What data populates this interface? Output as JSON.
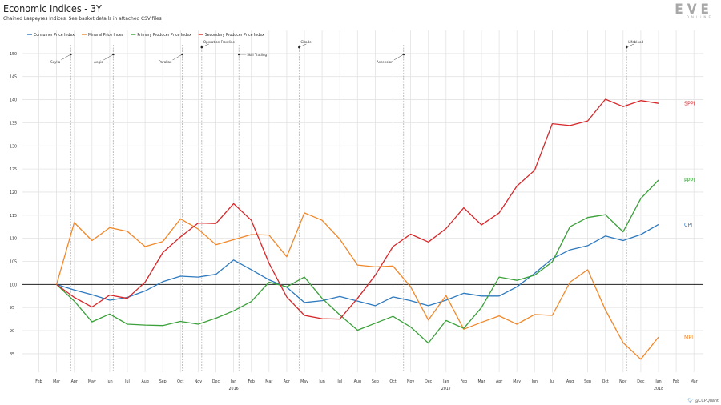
{
  "title": "Economic Indices - 3Y",
  "subtitle": "Chained Laspeyres Indices. See basket details in attached CSV files",
  "logo": {
    "main": "EVE",
    "sub": "ONLINE"
  },
  "credit": "@CCPQuant",
  "chart_data": {
    "type": "line",
    "x_labels": [
      "Feb",
      "Mar",
      "Apr",
      "May",
      "Jun",
      "Jul",
      "Aug",
      "Sep",
      "Oct",
      "Nov",
      "Dec",
      "Jan",
      "Feb",
      "Mar",
      "Apr",
      "May",
      "Jun",
      "Jul",
      "Aug",
      "Sep",
      "Oct",
      "Nov",
      "Dec",
      "Jan",
      "Feb",
      "Mar",
      "Apr",
      "May",
      "Jun",
      "Jul",
      "Aug",
      "Sep",
      "Oct",
      "Nov",
      "Dec",
      "Jan",
      "Feb",
      "Mar"
    ],
    "year_labels": [
      {
        "index": 11,
        "label": "2016"
      },
      {
        "index": 23,
        "label": "2017"
      },
      {
        "index": 35,
        "label": "2018"
      }
    ],
    "ylim": [
      81,
      155
    ],
    "yticks": [
      85,
      90,
      95,
      100,
      105,
      110,
      115,
      120,
      125,
      130,
      135,
      140,
      145,
      150
    ],
    "reference_line": 100,
    "series": [
      {
        "name": "Consumer Price Index",
        "short": "CPI",
        "color": "#2e7abf",
        "x": [
          1,
          2,
          3,
          4,
          5,
          6,
          7,
          8,
          9,
          10,
          11,
          12,
          13,
          14,
          15,
          16,
          17,
          18,
          19,
          20,
          21,
          22,
          23,
          24,
          25,
          26,
          27,
          28,
          29,
          30,
          31,
          32,
          33,
          34,
          35
        ],
        "values": [
          100,
          98.8,
          97.8,
          96.6,
          97.2,
          98.6,
          100.6,
          101.8,
          101.6,
          102.2,
          105.3,
          103.2,
          101,
          99.4,
          96.1,
          96.5,
          97.4,
          96.4,
          95.4,
          97.3,
          96.5,
          95.4,
          96.6,
          98.1,
          97.5,
          97.5,
          99.5,
          102.4,
          105.6,
          107.5,
          108.4,
          110.5,
          109.5,
          110.8,
          113
        ]
      },
      {
        "name": "Mineral Price Index",
        "short": "MPI",
        "color": "#f0882a",
        "x": [
          1,
          2,
          3,
          4,
          5,
          6,
          7,
          8,
          9,
          10,
          11,
          12,
          13,
          14,
          15,
          16,
          17,
          18,
          19,
          20,
          21,
          22,
          23,
          24,
          25,
          26,
          27,
          28,
          29,
          30,
          31,
          32,
          33,
          34,
          35
        ],
        "values": [
          100,
          113.4,
          109.5,
          112.3,
          111.5,
          108.2,
          109.3,
          114.2,
          112,
          108.6,
          109.7,
          110.8,
          110.7,
          106,
          115.5,
          113.9,
          109.8,
          104.2,
          103.8,
          104,
          99.5,
          92.3,
          97.6,
          90.3,
          91.8,
          93.2,
          91.4,
          93.5,
          93.3,
          100.5,
          103.2,
          94.5,
          87.4,
          83.8,
          88.6
        ]
      },
      {
        "name": "Primary Producer Price Index",
        "short": "PPPI",
        "color": "#3aa03a",
        "x": [
          1,
          2,
          3,
          4,
          5,
          6,
          7,
          8,
          9,
          10,
          11,
          12,
          13,
          14,
          15,
          16,
          17,
          18,
          19,
          20,
          21,
          22,
          23,
          24,
          25,
          26,
          27,
          28,
          29,
          30,
          31,
          32,
          33,
          34,
          35
        ],
        "values": [
          100,
          96.4,
          91.9,
          93.6,
          91.4,
          91.2,
          91.1,
          92,
          91.4,
          92.7,
          94.3,
          96.3,
          100.5,
          99.5,
          101.6,
          97,
          93.4,
          90.1,
          91.6,
          93.1,
          90.8,
          87.3,
          92.2,
          90.5,
          95,
          101.6,
          100.9,
          102,
          104.9,
          112.5,
          114.5,
          115.1,
          111.4,
          118.6,
          122.6
        ]
      },
      {
        "name": "Secondary Producer Price Index",
        "short": "SPPI",
        "color": "#d6272a",
        "x": [
          1,
          2,
          3,
          4,
          5,
          6,
          7,
          8,
          9,
          10,
          11,
          12,
          13,
          14,
          15,
          16,
          17,
          18,
          19,
          20,
          21,
          22,
          23,
          24,
          25,
          26,
          27,
          28,
          29,
          30,
          31,
          32,
          33,
          34,
          35
        ],
        "values": [
          100,
          97.2,
          95.1,
          97.7,
          97,
          100.5,
          106.9,
          110.3,
          113.3,
          113.2,
          117.5,
          113.9,
          104.6,
          97.3,
          93.3,
          92.6,
          92.5,
          97,
          102,
          108.2,
          110.9,
          109.2,
          112.1,
          116.6,
          112.9,
          115.5,
          121.3,
          124.7,
          134.8,
          134.4,
          135.4,
          140.1,
          138.5,
          139.8,
          139.2
        ]
      }
    ],
    "events": [
      {
        "label": "Scylla",
        "x": 1.8,
        "side": "left"
      },
      {
        "label": "Aegis",
        "x": 4.2,
        "side": "left"
      },
      {
        "label": "Parallax",
        "x": 8.1,
        "side": "left"
      },
      {
        "label": "Operation Frostline",
        "x": 9.2,
        "side": "right",
        "high": true
      },
      {
        "label": "Skill Trading",
        "x": 11.3,
        "side": "right"
      },
      {
        "label": "Citadel",
        "x": 14.7,
        "side": "right",
        "high": true
      },
      {
        "label": "Ascension",
        "x": 20.6,
        "side": "left"
      },
      {
        "label": "Lifeblood",
        "x": 33.2,
        "side": "right",
        "high": true
      }
    ]
  }
}
